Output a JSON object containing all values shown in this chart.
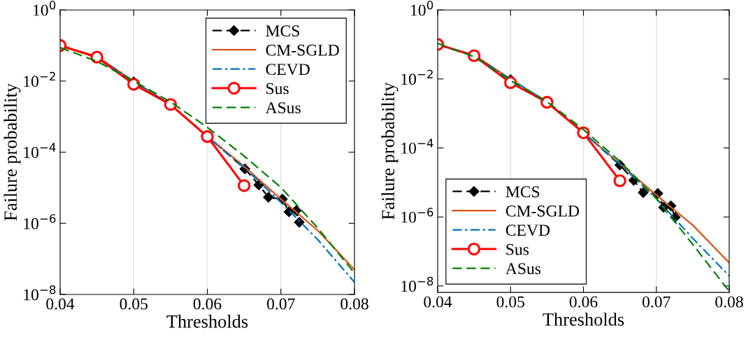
{
  "chart_data": [
    {
      "type": "line",
      "xlabel": "Thresholds",
      "ylabel": "Failure probability",
      "log": "y",
      "grid": "x",
      "legend": "top right",
      "xlim": [
        0.04,
        0.08
      ],
      "xticks": [
        0.04,
        0.05,
        0.06,
        0.07,
        0.08
      ],
      "ylim": [
        1e-08,
        1
      ],
      "yticks": [
        {
          "value": 1e-08,
          "label": "10$^{−8}$"
        },
        {
          "value": 1e-06,
          "label": "10$^{−6}$"
        },
        {
          "value": 0.0001,
          "label": "10$^{−4}$"
        },
        {
          "value": 0.01,
          "label": "10$^{−2}$"
        },
        {
          "value": 1,
          "label": "10$^{0}$"
        }
      ],
      "series": [
        {
          "name": "MCS",
          "color": "#000000",
          "line_style": "dashed",
          "marker": "diamond",
          "x": [
            0.04,
            0.045,
            0.05,
            0.055,
            0.06,
            0.0651,
            0.067,
            0.0683,
            0.0702,
            0.0711,
            0.0721,
            0.0725
          ],
          "values": [
            0.1,
            0.046,
            0.0095,
            0.0022,
            0.00028,
            3.4e-05,
            1.2e-05,
            5.4e-06,
            4.8e-06,
            2.1e-06,
            2.3e-06,
            1.07e-06
          ]
        },
        {
          "name": "CM-SGLD",
          "color": "#d95319",
          "line_style": "solid",
          "x": [
            0.04,
            0.045,
            0.05,
            0.055,
            0.06,
            0.065,
            0.07,
            0.075,
            0.08
          ],
          "values": [
            0.1,
            0.049,
            0.01,
            0.0021,
            0.00028,
            4e-05,
            4.8e-06,
            6.3e-07,
            5e-08
          ]
        },
        {
          "name": "CEVD",
          "color": "#0072bd",
          "line_style": "dashdot",
          "x": [
            0.04,
            0.045,
            0.05,
            0.055,
            0.06,
            0.065,
            0.07,
            0.075,
            0.08
          ],
          "values": [
            0.1,
            0.048,
            0.0098,
            0.0022,
            0.00027,
            3.7e-05,
            3.9e-06,
            3.5e-07,
            2.2e-08
          ]
        },
        {
          "name": "Sus",
          "color": "#ff0000",
          "line_style": "solid",
          "marker": "circle",
          "x": [
            0.04,
            0.045,
            0.05,
            0.055,
            0.06,
            0.065
          ],
          "values": [
            0.1,
            0.047,
            0.0081,
            0.0022,
            0.000275,
            1.15e-05
          ]
        },
        {
          "name": "ASus",
          "color": "#008000",
          "line_style": "dashed",
          "x": [
            0.04,
            0.045,
            0.05,
            0.055,
            0.06,
            0.065,
            0.07,
            0.075,
            0.08
          ],
          "values": [
            0.087,
            0.036,
            0.01,
            0.0026,
            0.0005,
            7.8e-05,
            1.02e-05,
            7.4e-07,
            4e-08
          ]
        }
      ]
    },
    {
      "type": "line",
      "xlabel": "Thresholds",
      "ylabel": "Failure probability",
      "log": "y",
      "grid": "x",
      "legend": "bottom left",
      "xlim": [
        0.04,
        0.08
      ],
      "xticks": [
        0.04,
        0.05,
        0.06,
        0.07,
        0.08
      ],
      "ylim": [
        6.5e-09,
        1
      ],
      "yticks": [
        {
          "value": 1e-08,
          "label": "10$^{−8}$"
        },
        {
          "value": 1e-06,
          "label": "10$^{−6}$"
        },
        {
          "value": 0.0001,
          "label": "10$^{−4}$"
        },
        {
          "value": 0.01,
          "label": "10$^{−2}$"
        },
        {
          "value": 1,
          "label": "10$^{0}$"
        }
      ],
      "series": [
        {
          "name": "MCS",
          "color": "#000000",
          "line_style": "dashed",
          "marker": "diamond",
          "x": [
            0.04,
            0.045,
            0.05,
            0.055,
            0.06,
            0.065,
            0.0669,
            0.0682,
            0.0702,
            0.071,
            0.072,
            0.0726
          ],
          "values": [
            0.1,
            0.046,
            0.0095,
            0.0022,
            0.00028,
            3.2e-05,
            1.15e-05,
            5.1e-06,
            4.8e-06,
            1.9e-06,
            2.1e-06,
            9.8e-07
          ]
        },
        {
          "name": "CM-SGLD",
          "color": "#d95319",
          "line_style": "solid",
          "x": [
            0.04,
            0.045,
            0.05,
            0.055,
            0.06,
            0.065,
            0.07,
            0.075,
            0.08
          ],
          "values": [
            0.1,
            0.049,
            0.01,
            0.0021,
            0.00028,
            3.5e-05,
            4.3e-06,
            5.8e-07,
            4.7e-08
          ]
        },
        {
          "name": "CEVD",
          "color": "#0072bd",
          "line_style": "dashdot",
          "x": [
            0.04,
            0.045,
            0.05,
            0.055,
            0.06,
            0.065,
            0.07,
            0.075,
            0.08
          ],
          "values": [
            0.1,
            0.048,
            0.0098,
            0.0022,
            0.00027,
            3.4e-05,
            3.4e-06,
            2.4e-07,
            1.95e-08
          ]
        },
        {
          "name": "Sus",
          "color": "#ff0000",
          "line_style": "solid",
          "marker": "circle",
          "x": [
            0.04,
            0.045,
            0.05,
            0.055,
            0.06,
            0.065
          ],
          "values": [
            0.1,
            0.047,
            0.0078,
            0.0021,
            0.000275,
            1.12e-05
          ]
        },
        {
          "name": "ASus",
          "color": "#008000",
          "line_style": "dashed",
          "x": [
            0.04,
            0.045,
            0.05,
            0.055,
            0.06,
            0.065,
            0.07,
            0.075,
            0.08
          ],
          "values": [
            0.107,
            0.044,
            0.0089,
            0.0022,
            0.00034,
            4.1e-05,
            3.4e-06,
            1.6e-07,
            7e-09
          ]
        }
      ]
    }
  ]
}
